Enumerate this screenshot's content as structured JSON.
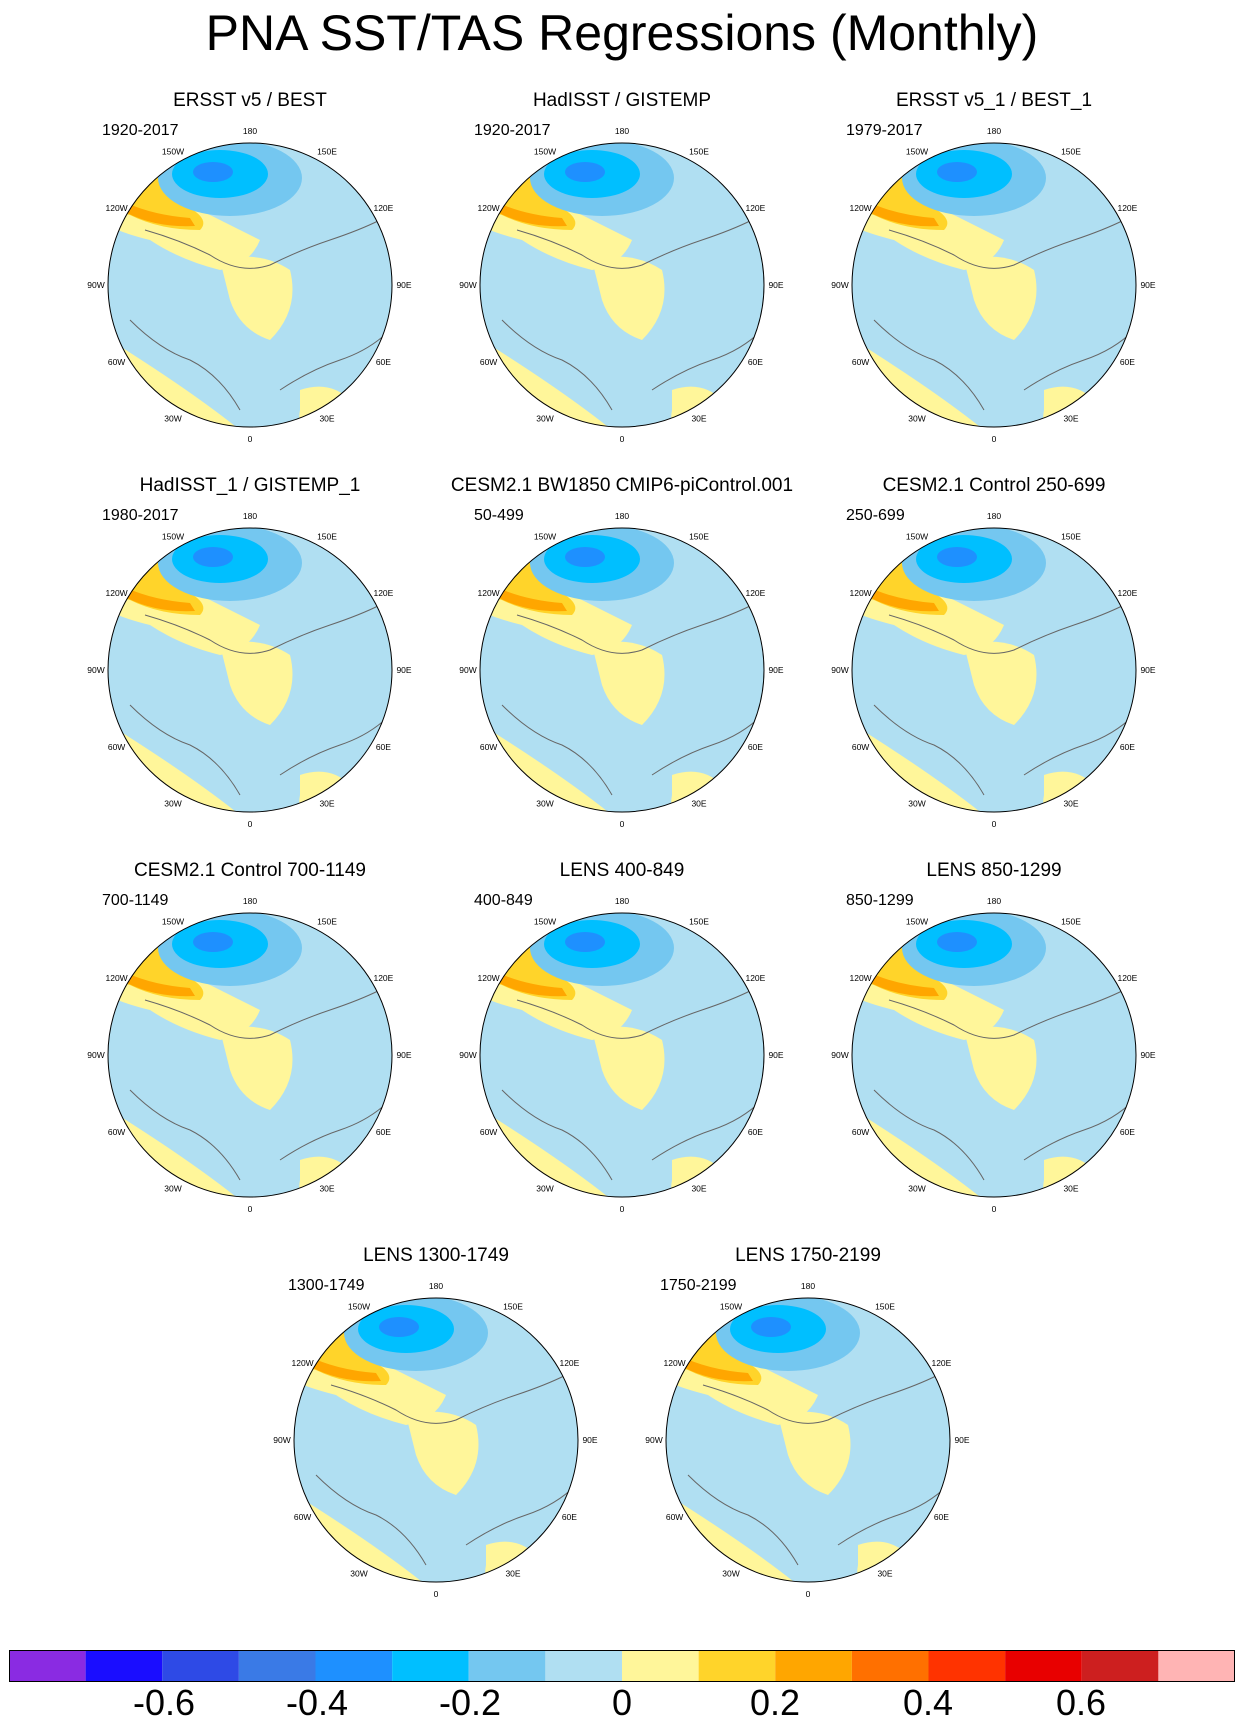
{
  "title": "PNA SST/TAS Regressions (Monthly)",
  "lon_labels": [
    "180",
    "150E",
    "120E",
    "90E",
    "60E",
    "30E",
    "0",
    "30W",
    "60W",
    "90W",
    "120W",
    "150W"
  ],
  "panels": [
    {
      "title": "ERSST v5 / BEST",
      "years": "1920-2017"
    },
    {
      "title": "HadISST / GISTEMP",
      "years": "1920-2017"
    },
    {
      "title": "ERSST v5_1 / BEST_1",
      "years": "1979-2017"
    },
    {
      "title": "HadISST_1 / GISTEMP_1",
      "years": "1980-2017"
    },
    {
      "title": "CESM2.1 BW1850 CMIP6-piControl.001",
      "years": "50-499"
    },
    {
      "title": "CESM2.1 Control 250-699",
      "years": "250-699"
    },
    {
      "title": "CESM2.1 Control 700-1149",
      "years": "700-1149"
    },
    {
      "title": "LENS 400-849",
      "years": "400-849"
    },
    {
      "title": "LENS 850-1299",
      "years": "850-1299"
    },
    {
      "title": "LENS 1300-1749",
      "years": "1300-1749"
    },
    {
      "title": "LENS 1750-2199",
      "years": "1750-2199"
    }
  ],
  "colorbar": {
    "colors": [
      "#8a2be2",
      "#1a0dff",
      "#2e4ae6",
      "#3a7ae6",
      "#1e90ff",
      "#00bfff",
      "#74c7f0",
      "#b0dff2",
      "#fff69a",
      "#ffd42a",
      "#ffa600",
      "#ff7000",
      "#ff3300",
      "#e80000",
      "#cd1f1f",
      "#ffb4b4"
    ],
    "labels": [
      "-0.6",
      "-0.4",
      "-0.2",
      "0",
      "0.2",
      "0.4",
      "0.6"
    ]
  },
  "field_colors": {
    "positive_light": "#fff69a",
    "positive_mid": "#ffd42a",
    "positive_strong": "#ffa600",
    "negative_light": "#b0dff2",
    "negative_mid": "#74c7f0",
    "negative_strong": "#00bfff",
    "negative_core": "#1e90ff"
  }
}
